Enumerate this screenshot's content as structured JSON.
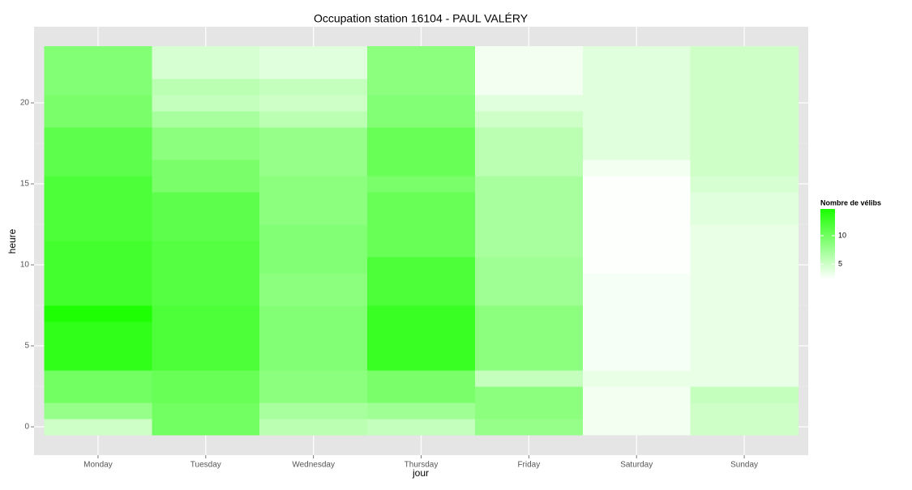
{
  "chart_data": {
    "type": "heatmap",
    "title": "Occupation station 16104 - PAUL VALÉRY",
    "xlabel": "jour",
    "ylabel": "heure",
    "categories": [
      "Monday",
      "Tuesday",
      "Wednesday",
      "Thursday",
      "Friday",
      "Saturday",
      "Sunday"
    ],
    "y": [
      0,
      1,
      2,
      3,
      4,
      5,
      6,
      7,
      8,
      9,
      10,
      11,
      12,
      13,
      14,
      15,
      16,
      17,
      18,
      19,
      20,
      21,
      22,
      23
    ],
    "ylim": [
      -1.75,
      24.7
    ],
    "yticks": [
      0,
      5,
      10,
      15,
      20
    ],
    "values": [
      [
        5,
        8,
        10,
        10,
        13.5,
        13.5,
        13.5,
        14.5,
        12.5,
        12.5,
        12.5,
        12.5,
        12,
        12,
        12,
        12,
        11,
        11,
        11,
        9.5,
        9.5,
        9,
        9,
        9
      ],
      [
        10,
        10,
        10.5,
        10.5,
        12,
        12,
        12,
        12,
        11.5,
        11.5,
        11.5,
        11.5,
        11,
        11,
        11,
        9.5,
        9.5,
        8.5,
        8.5,
        7,
        5.5,
        6,
        4.5,
        4.5
      ],
      [
        6,
        7,
        8.5,
        8.5,
        9,
        9,
        9,
        9,
        8.5,
        8.5,
        9,
        9,
        9,
        8.5,
        8.5,
        8.5,
        8,
        8,
        8,
        6,
        5,
        5.5,
        4,
        4
      ],
      [
        5.5,
        7.5,
        9.5,
        9.5,
        13,
        13,
        13,
        13,
        12,
        12,
        12,
        10.5,
        10.5,
        10.5,
        10.5,
        9.5,
        10.5,
        10.5,
        10.5,
        9,
        9,
        8.5,
        8.5,
        8.5
      ],
      [
        8,
        8.5,
        8.5,
        5.5,
        8.5,
        8.5,
        8.5,
        8.5,
        7.5,
        7.5,
        7.5,
        7,
        7,
        7,
        7,
        7,
        6,
        6,
        6,
        5,
        4,
        3,
        3,
        3
      ],
      [
        3,
        3,
        3,
        3.5,
        2.8,
        2.8,
        2.8,
        2.8,
        2.8,
        2.8,
        2.4,
        2.4,
        2.4,
        2.4,
        2.4,
        2.4,
        3,
        4,
        4,
        4,
        4,
        4,
        4,
        4
      ],
      [
        5,
        5,
        5.5,
        3.5,
        3.5,
        3.5,
        3.5,
        3.5,
        3.5,
        3.5,
        3.5,
        3.5,
        3.5,
        4,
        4,
        4.5,
        5,
        5,
        5,
        5,
        5,
        5,
        5,
        5
      ]
    ],
    "legend": {
      "title": "Nombre de vélibs",
      "ticks": [
        5,
        10
      ],
      "lim": [
        2.3,
        14.7
      ],
      "low": "#ffffff",
      "high": "#1aff00"
    },
    "grid": true
  }
}
